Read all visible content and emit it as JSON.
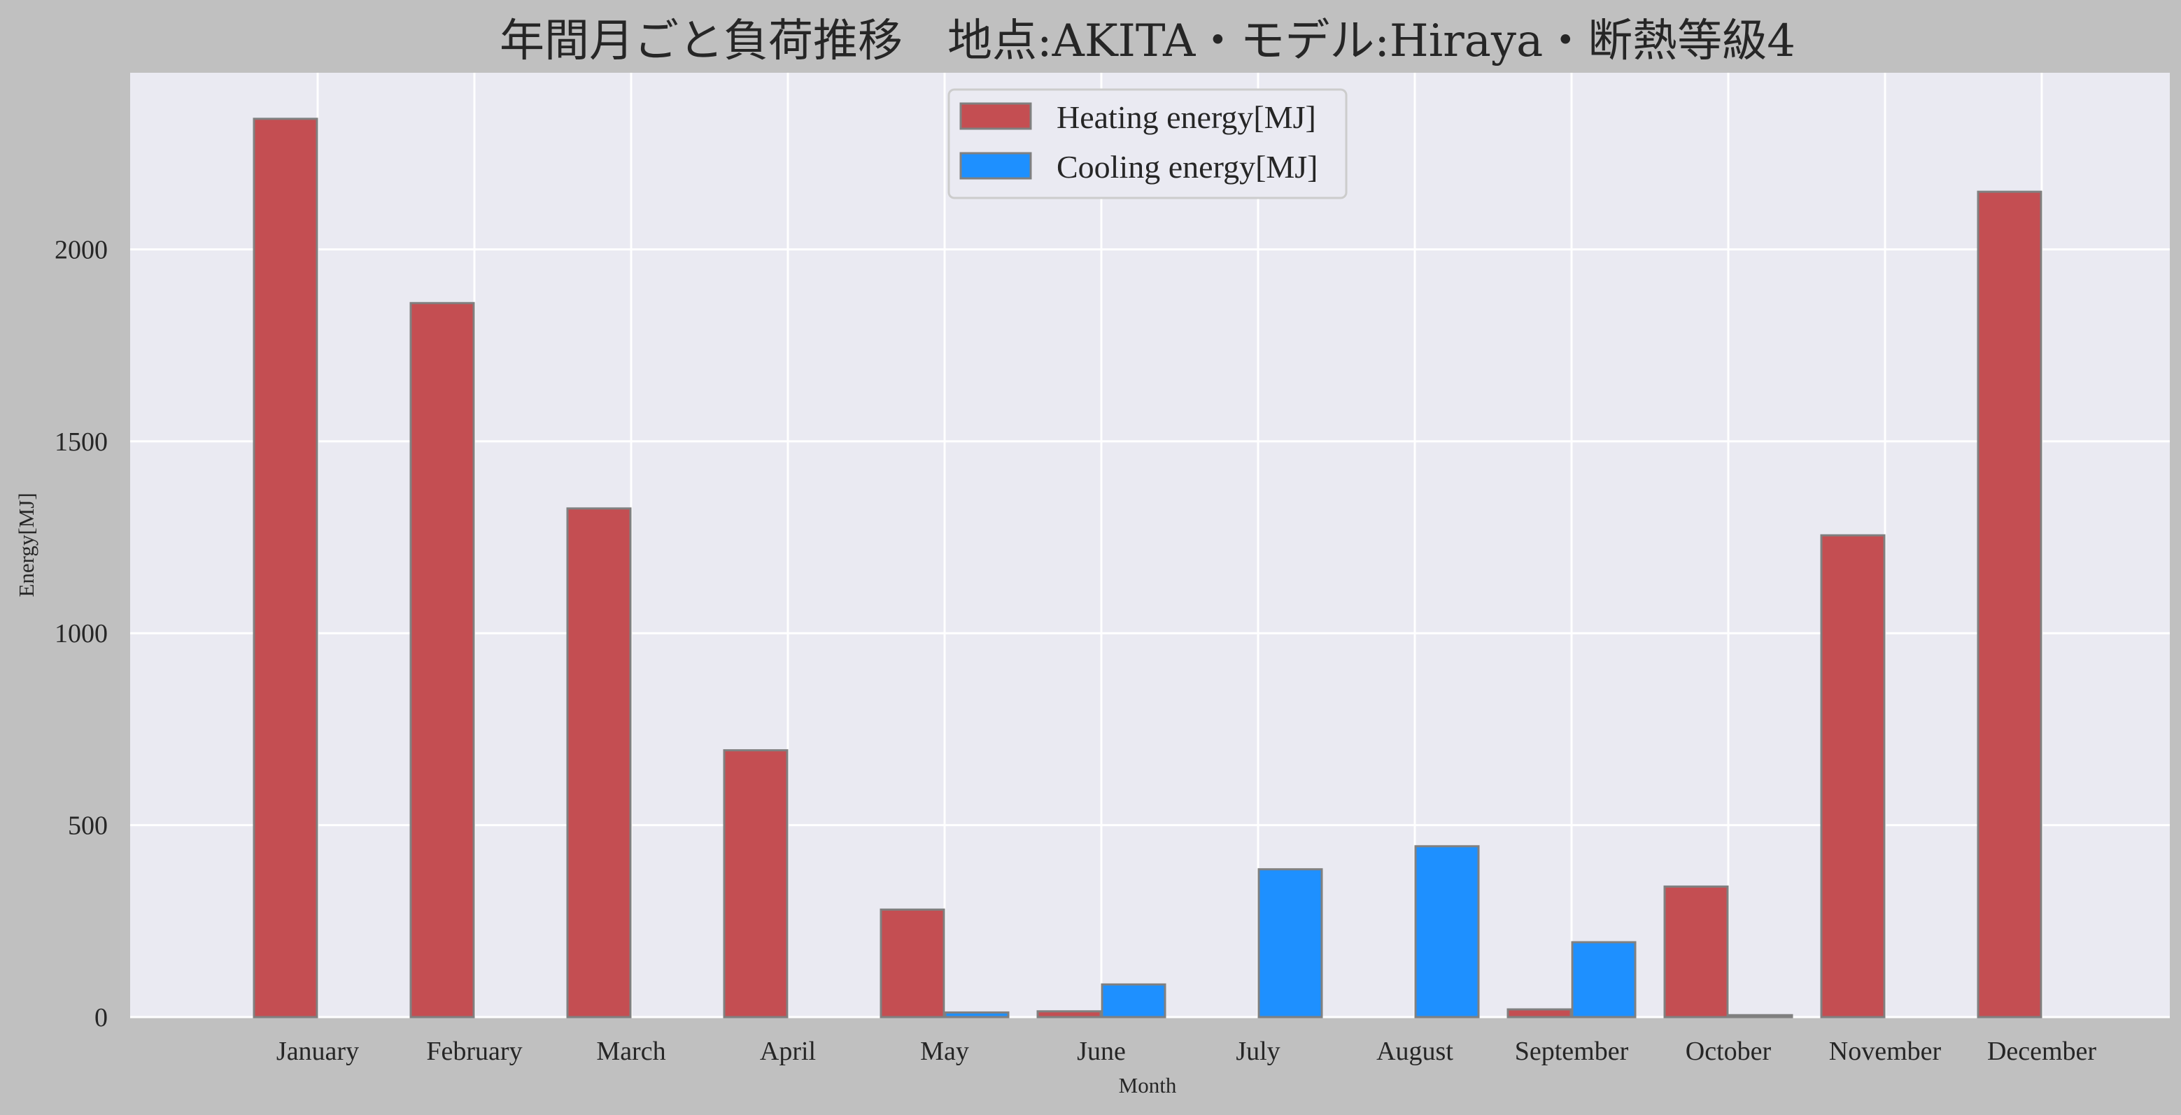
{
  "chart_data": {
    "type": "bar",
    "title": "年間月ごと負荷推移　地点:AKITA・モデル:Hiraya・断熱等級4",
    "xlabel": "Month",
    "ylabel": "Energy[MJ]",
    "categories": [
      "January",
      "February",
      "March",
      "April",
      "May",
      "June",
      "July",
      "August",
      "September",
      "October",
      "November",
      "December"
    ],
    "series": [
      {
        "name": "Heating energy[MJ]",
        "color": "#c44e52",
        "values": [
          2340,
          1860,
          1325,
          695,
          280,
          15,
          0,
          0,
          20,
          340,
          1255,
          2150
        ]
      },
      {
        "name": "Cooling energy[MJ]",
        "color": "#1e90ff",
        "values": [
          0,
          0,
          0,
          0,
          12,
          85,
          385,
          445,
          195,
          5,
          0,
          0
        ]
      }
    ],
    "ylim": [
      0,
      2460
    ],
    "yticks": [
      0,
      500,
      1000,
      1500,
      2000
    ],
    "grid": true,
    "legend": "top-center"
  },
  "colors": {
    "figure_background": "#c0c0c0",
    "plot_background": "#eaeaf2",
    "grid": "#ffffff",
    "bar_edge": "#808080"
  }
}
